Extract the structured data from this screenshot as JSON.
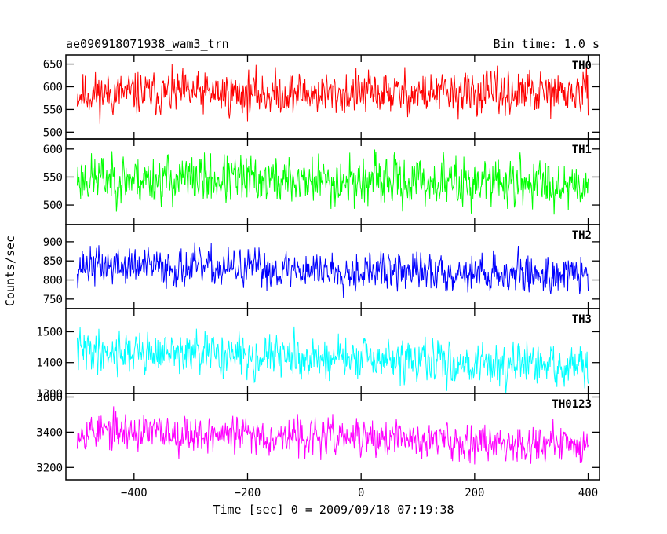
{
  "header": {
    "left_title": "ae090918071938_wam3_trn",
    "right_title": "Bin time: 1.0 s"
  },
  "chart_data": {
    "type": "line",
    "xlabel": "Time [sec] 0 = 2009/09/18 07:19:38",
    "ylabel": "Counts/sec",
    "xlim": [
      -520,
      420
    ],
    "xticks": [
      -400,
      -200,
      0,
      200,
      400
    ],
    "x_tick_labels": [
      "−400",
      "−200",
      "0",
      "200",
      "400"
    ],
    "data_x_range": [
      -500,
      400
    ],
    "bin_time_s": 1.0,
    "grid": false,
    "panels": [
      {
        "name": "TH0",
        "color": "#ff0000",
        "ylim": [
          485,
          670
        ],
        "yticks": [
          500,
          550,
          600,
          650
        ],
        "y_tick_labels": [
          "500",
          "550",
          "600",
          "650"
        ],
        "mean": 585,
        "spread": 28,
        "trend": 0,
        "noise_seed": 11
      },
      {
        "name": "TH1",
        "color": "#00ff00",
        "ylim": [
          465,
          618
        ],
        "yticks": [
          500,
          550,
          600
        ],
        "y_tick_labels": [
          "500",
          "550",
          "600"
        ],
        "mean": 548,
        "spread": 26,
        "trend": -10,
        "noise_seed": 23
      },
      {
        "name": "TH2",
        "color": "#0000ff",
        "ylim": [
          725,
          945
        ],
        "yticks": [
          750,
          800,
          850,
          900
        ],
        "y_tick_labels": [
          "750",
          "800",
          "850",
          "900"
        ],
        "mean": 838,
        "spread": 30,
        "trend": -25,
        "noise_seed": 37
      },
      {
        "name": "TH3",
        "color": "#00ffff",
        "ylim": [
          1300,
          1575
        ],
        "yticks": [
          1300,
          1400,
          1500
        ],
        "y_tick_labels": [
          "1300",
          "1400",
          "1500"
        ],
        "mean": 1440,
        "spread": 40,
        "trend": -55,
        "noise_seed": 41
      },
      {
        "name": "TH0123",
        "color": "#ff00ff",
        "ylim": [
          3130,
          3620
        ],
        "yticks": [
          3200,
          3400,
          3600
        ],
        "y_tick_labels": [
          "3200",
          "3400",
          "3600"
        ],
        "mean": 3410,
        "spread": 62,
        "trend": -80,
        "noise_seed": 53
      }
    ]
  }
}
